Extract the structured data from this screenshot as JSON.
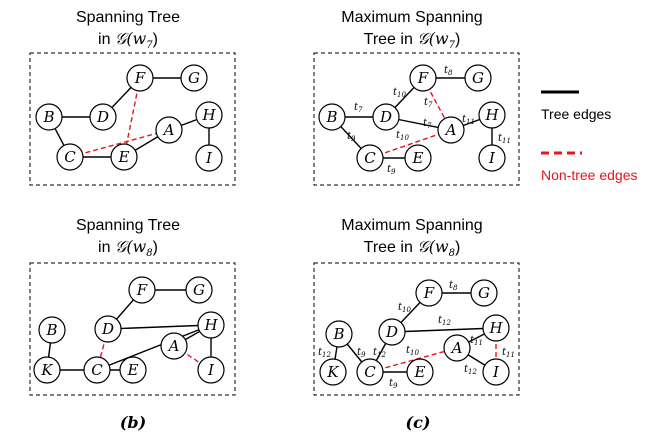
{
  "panels": {
    "b1": {
      "title_line1": "Spanning Tree",
      "title_line2_prefix": "in ",
      "title_line2_math": "𝒢(w",
      "title_line2_sub": "7",
      "title_line2_suffix": ")"
    },
    "c1": {
      "title_line1": "Maximum Spanning",
      "title_line2_prefix": "Tree in ",
      "title_line2_math": "𝒢(w",
      "title_line2_sub": "7",
      "title_line2_suffix": ")"
    },
    "b2": {
      "title_line1": "Spanning Tree",
      "title_line2_prefix": "in ",
      "title_line2_math": "𝒢(w",
      "title_line2_sub": "8",
      "title_line2_suffix": ")"
    },
    "c2": {
      "title_line1": "Maximum Spanning",
      "title_line2_prefix": "Tree in ",
      "title_line2_math": "𝒢(w",
      "title_line2_sub": "8",
      "title_line2_suffix": ")"
    }
  },
  "legend": {
    "tree_edges": "Tree edges",
    "non_tree_edges": "Non-tree edges",
    "tree_color": "#000000",
    "non_tree_color": "#e8141c"
  },
  "captions": {
    "b": "(b)",
    "c": "(c)"
  },
  "graphs": {
    "top_nodes": [
      "B",
      "D",
      "F",
      "G",
      "C",
      "E",
      "A",
      "H",
      "I"
    ],
    "bottom_nodes": [
      "B",
      "K",
      "D",
      "C",
      "E",
      "F",
      "G",
      "A",
      "H",
      "I"
    ],
    "b1_tree_edges": [
      "B-D",
      "B-C",
      "D-F",
      "F-G",
      "C-E",
      "E-A",
      "A-H",
      "H-I"
    ],
    "b1_non_tree_edges": [
      "F-E",
      "C-A"
    ],
    "c1_tree_edges": [
      "B-D",
      "B-C",
      "D-F",
      "F-G",
      "C-E",
      "D-A",
      "A-H",
      "H-I"
    ],
    "c1_non_tree_edges": [
      "F-A",
      "C-A"
    ],
    "b2_tree_edges": [
      "B-K",
      "K-C",
      "C-E",
      "D-F",
      "F-G",
      "D-H",
      "C-H",
      "A-H",
      "H-I"
    ],
    "b2_non_tree_edges": [
      "D-C",
      "A-I"
    ],
    "c2_tree_edges": [
      "B-C",
      "D-F",
      "F-G",
      "C-E",
      "D-H",
      "A-H",
      "A-I",
      "B-K",
      "D-C"
    ],
    "c2_non_tree_edges": [
      "C-A",
      "H-I"
    ]
  },
  "weights": {
    "c1": [
      {
        "t": "t",
        "s": "7"
      },
      {
        "t": "t",
        "s": "10"
      },
      {
        "t": "t",
        "s": "8"
      },
      {
        "t": "t",
        "s": "7"
      },
      {
        "t": "t",
        "s": "9"
      },
      {
        "t": "t",
        "s": "10"
      },
      {
        "t": "t",
        "s": "7"
      },
      {
        "t": "t",
        "s": "11"
      },
      {
        "t": "t",
        "s": "11"
      },
      {
        "t": "t",
        "s": "9"
      }
    ],
    "c2": [
      {
        "t": "t",
        "s": "10"
      },
      {
        "t": "t",
        "s": "8"
      },
      {
        "t": "t",
        "s": "12"
      },
      {
        "t": "t",
        "s": "12"
      },
      {
        "t": "t",
        "s": "9"
      },
      {
        "t": "t",
        "s": "12"
      },
      {
        "t": "t",
        "s": "10"
      },
      {
        "t": "t",
        "s": "11"
      },
      {
        "t": "t",
        "s": "11"
      },
      {
        "t": "t",
        "s": "12"
      },
      {
        "t": "t",
        "s": "9"
      }
    ]
  }
}
